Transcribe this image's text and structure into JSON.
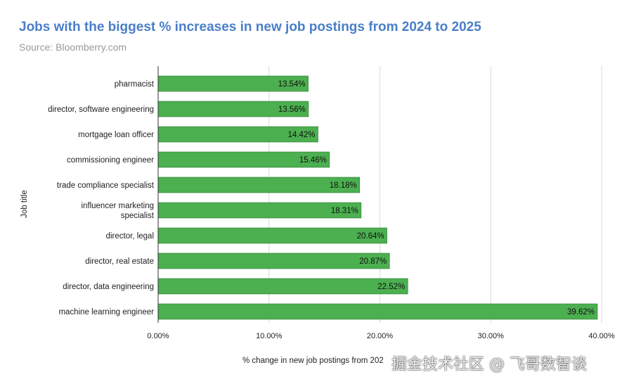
{
  "title": "Jobs with the biggest % increases in new job postings from 2024 to 2025",
  "subtitle": "Source: Bloomberry.com",
  "watermark": "掘金技术社区 @ 飞哥数智谈",
  "colors": {
    "bar": "#4caf50",
    "bar_stroke": "#2e7d32",
    "grid": "#d9d9d9",
    "axis": "#333333",
    "title": "#4a7fc8"
  },
  "chart_data": {
    "type": "bar",
    "orientation": "horizontal",
    "title": "Jobs with the biggest % increases in new job postings from 2024 to 2025",
    "subtitle": "Source: Bloomberry.com",
    "xlabel": "% change in new job postings from 202",
    "ylabel": "Job title",
    "xlim": [
      0,
      40
    ],
    "xticks": [
      0,
      10,
      20,
      30,
      40
    ],
    "xtick_labels": [
      "0.00%",
      "10.00%",
      "20.00%",
      "30.00%",
      "40.00%"
    ],
    "grid": true,
    "categories": [
      "pharmacist",
      "director, software engineering",
      "mortgage loan officer",
      "commissioning engineer",
      "trade compliance specialist",
      "influencer marketing specialist",
      "director, legal",
      "director, real estate",
      "director, data engineering",
      "machine learning engineer"
    ],
    "values": [
      13.54,
      13.56,
      14.42,
      15.46,
      18.18,
      18.31,
      20.64,
      20.87,
      22.52,
      39.62
    ],
    "data_labels": [
      "13.54%",
      "13.56%",
      "14.42%",
      "15.46%",
      "18.18%",
      "18.31%",
      "20.64%",
      "20.87%",
      "22.52%",
      "39.62%"
    ]
  }
}
